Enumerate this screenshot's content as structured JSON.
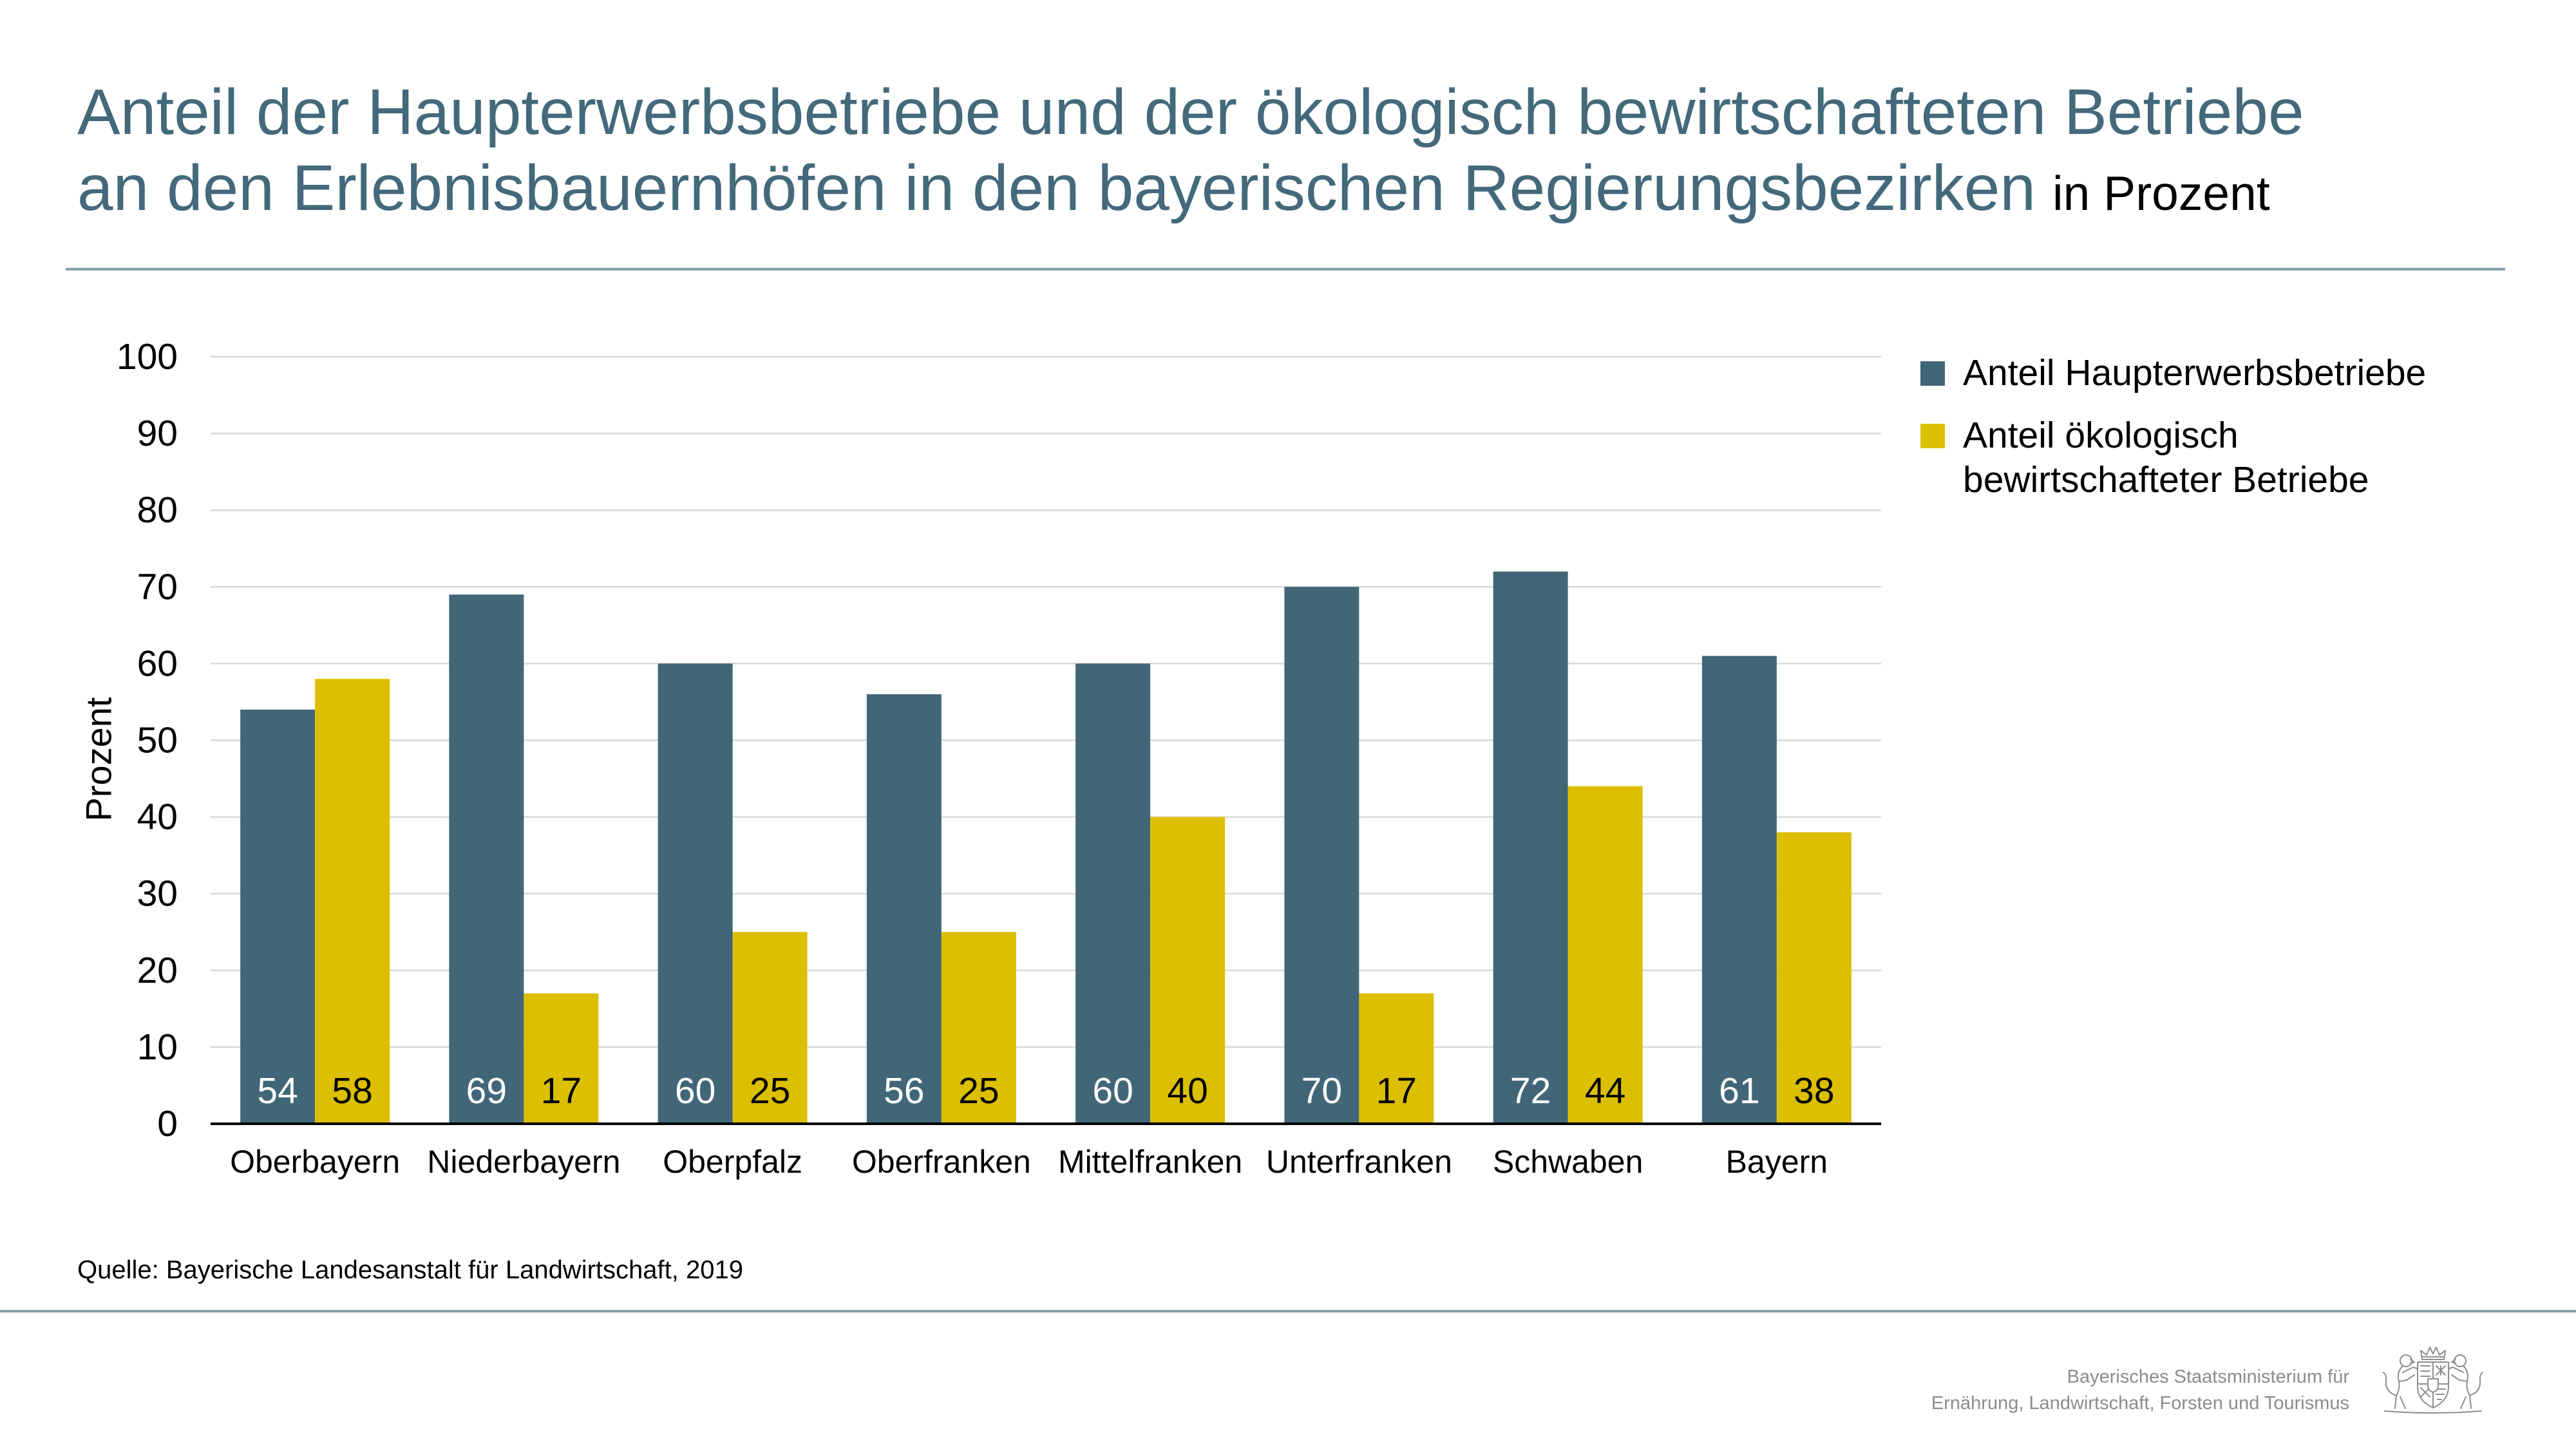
{
  "theme": {
    "title_color": "#43697b",
    "divider_color": "#86a0ab",
    "publisher_color": "#8c8c8c"
  },
  "chart_data": {
    "type": "bar",
    "title": "Anteil der Haupterwerbsbetriebe und der ökologisch bewirtschafteten Betriebe an den Erlebnisbauernhöfen in den bayerischen Regierungsbezirken",
    "subtitle": "in Prozent",
    "ylabel": "Prozent",
    "ylim": [
      0,
      100
    ],
    "yticks": [
      0,
      10,
      20,
      30,
      40,
      50,
      60,
      70,
      80,
      90,
      100
    ],
    "grid": true,
    "legend": "right",
    "data_labels": true,
    "categories": [
      "Oberbayern",
      "Niederbayern",
      "Oberpfalz",
      "Oberfranken",
      "Mittelfranken",
      "Unterfranken",
      "Schwaben",
      "Bayern"
    ],
    "series": [
      {
        "name": "Anteil Haupterwerbsbetriebe",
        "color": "#416678",
        "label_color": "#ffffff",
        "values": [
          54,
          69,
          60,
          56,
          60,
          70,
          72,
          61
        ]
      },
      {
        "name": "Anteil ökologisch bewirtschafteter Betriebe",
        "color": "#dcbf00",
        "label_color": "#000000",
        "values": [
          58,
          17,
          25,
          25,
          40,
          17,
          44,
          38
        ]
      }
    ]
  },
  "footer": {
    "source": "Quelle: Bayerische Landesanstalt für Landwirtschaft, 2019",
    "publisher": [
      "Bayerisches Staatsministerium für",
      "Ernährung, Landwirtschaft, Forsten und Tourismus"
    ],
    "logo": "bavarian-coat-of-arms-icon"
  }
}
